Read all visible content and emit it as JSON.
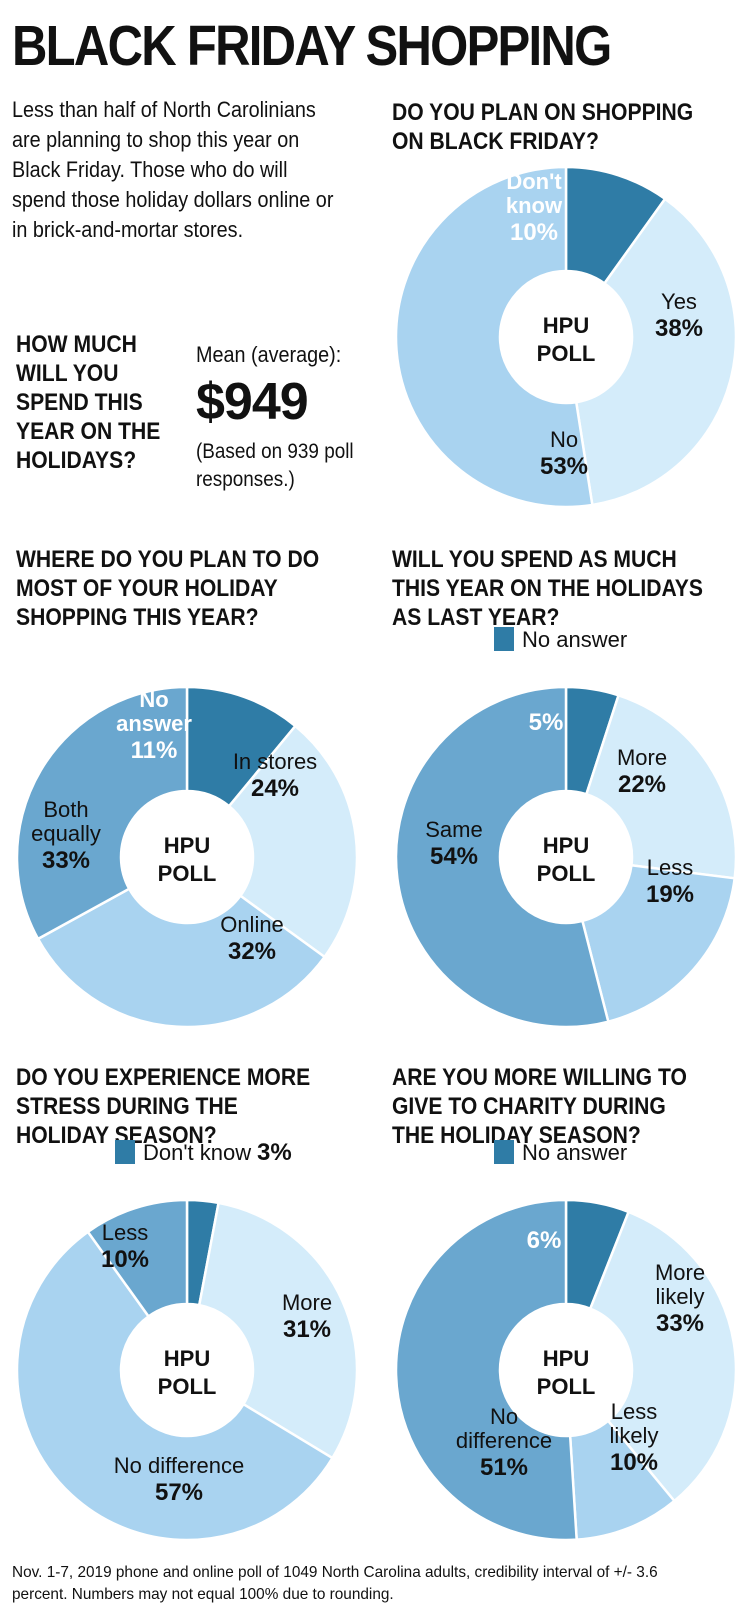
{
  "title": "BLACK FRIDAY SHOPPING",
  "intro": "Less than half of North Carolinians are planning to shop this year on Black Friday. Those who do will spend those holiday dollars online or in brick-and-mortar stores.",
  "spend": {
    "question": "HOW MUCH\nWILL YOU\nSPEND THIS\nYEAR ON THE\nHOLIDAYS?",
    "mean_label": "Mean (average):",
    "mean_value": "$949",
    "note": "(Based on 939 poll responses.)"
  },
  "center_label": [
    "HPU",
    "POLL"
  ],
  "colors": {
    "dark": "#2f7ca6",
    "mid": "#6aa7cf",
    "light": "#a9d3f0",
    "pale": "#d4ecfa",
    "border": "#ffffff"
  },
  "chart_data": [
    {
      "id": "black-friday",
      "type": "pie",
      "question": "DO YOU PLAN ON SHOPPING\nON BLACK FRIDAY?",
      "slices": [
        {
          "label": "Don't know",
          "value": 10,
          "display": "10%",
          "color": "dark"
        },
        {
          "label": "Yes",
          "value": 38,
          "display": "38%",
          "color": "pale"
        },
        {
          "label": "No",
          "value": 53,
          "display": "53%",
          "color": "light"
        }
      ]
    },
    {
      "id": "where-shop",
      "type": "pie",
      "question": "WHERE DO YOU PLAN TO DO\nMOST OF YOUR HOLIDAY\nSHOPPING THIS YEAR?",
      "slices": [
        {
          "label": "No answer",
          "value": 11,
          "display": "11%",
          "color": "dark"
        },
        {
          "label": "In stores",
          "value": 24,
          "display": "24%",
          "color": "pale"
        },
        {
          "label": "Online",
          "value": 32,
          "display": "32%",
          "color": "light"
        },
        {
          "label": "Both equally",
          "value": 33,
          "display": "33%",
          "color": "mid"
        }
      ]
    },
    {
      "id": "spend-as-much",
      "type": "pie",
      "question": "WILL YOU SPEND AS MUCH\nTHIS YEAR ON THE HOLIDAYS\nAS LAST YEAR?",
      "legend": "No answer",
      "slices": [
        {
          "label": "No answer",
          "value": 5,
          "display": "5%",
          "color": "dark"
        },
        {
          "label": "More",
          "value": 22,
          "display": "22%",
          "color": "pale"
        },
        {
          "label": "Less",
          "value": 19,
          "display": "19%",
          "color": "light"
        },
        {
          "label": "Same",
          "value": 54,
          "display": "54%",
          "color": "mid"
        }
      ]
    },
    {
      "id": "stress",
      "type": "pie",
      "question": "DO YOU EXPERIENCE MORE\nSTRESS DURING THE\nHOLIDAY SEASON?",
      "legend": "Don't know",
      "legend_value": "3%",
      "slices": [
        {
          "label": "Don't know",
          "value": 3,
          "display": "3%",
          "color": "dark"
        },
        {
          "label": "More",
          "value": 31,
          "display": "31%",
          "color": "pale"
        },
        {
          "label": "No difference",
          "value": 57,
          "display": "57%",
          "color": "light"
        },
        {
          "label": "Less",
          "value": 10,
          "display": "10%",
          "color": "mid"
        }
      ]
    },
    {
      "id": "charity",
      "type": "pie",
      "question": "ARE YOU MORE WILLING TO\nGIVE TO CHARITY DURING\nTHE HOLIDAY SEASON?",
      "legend": "No answer",
      "slices": [
        {
          "label": "No answer",
          "value": 6,
          "display": "6%",
          "color": "dark"
        },
        {
          "label": "More likely",
          "value": 33,
          "display": "33%",
          "color": "pale"
        },
        {
          "label": "Less likely",
          "value": 10,
          "display": "10%",
          "color": "light"
        },
        {
          "label": "No difference",
          "value": 51,
          "display": "51%",
          "color": "mid"
        }
      ]
    }
  ],
  "footnote": "Nov. 1-7, 2019 phone and online poll of 1049 North Carolina adults, credibility interval of +/- 3.6 percent. Numbers may not equal 100% due to rounding."
}
